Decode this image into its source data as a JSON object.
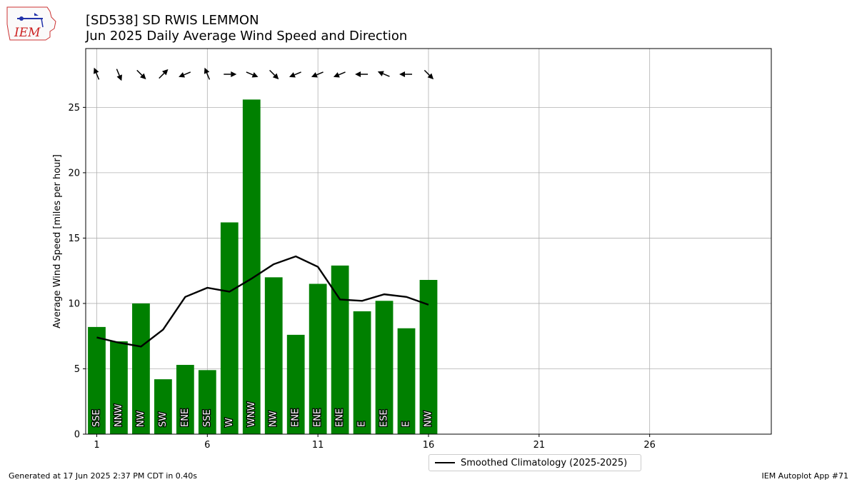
{
  "header": {
    "title_line1": "[SD538] SD RWIS LEMMON",
    "title_line2": "Jun 2025 Daily Average Wind Speed and Direction"
  },
  "logo": {
    "text": "IEM"
  },
  "footer": {
    "left": "Generated at 17 Jun 2025 2:37 PM CDT in 0.40s",
    "right": "IEM Autoplot App #71"
  },
  "chart_data": {
    "type": "bar",
    "ylabel": "Average Wind Speed [miles per hour]",
    "xlabel": "",
    "xlim": [
      0.5,
      31.5
    ],
    "ylim": [
      0,
      29.5
    ],
    "xticks": [
      1,
      6,
      11,
      16,
      21,
      26
    ],
    "yticks": [
      0,
      5,
      10,
      15,
      20,
      25
    ],
    "grid": true,
    "bar_color": "#008000",
    "line_color": "#000000",
    "legend_position": "bottom-center",
    "days": [
      1,
      2,
      3,
      4,
      5,
      6,
      7,
      8,
      9,
      10,
      11,
      12,
      13,
      14,
      15,
      16
    ],
    "speed": [
      8.2,
      7.1,
      10.0,
      4.2,
      5.3,
      4.9,
      16.2,
      25.6,
      12.0,
      7.6,
      11.5,
      12.9,
      9.4,
      10.2,
      8.1,
      11.8
    ],
    "direction_labels": [
      "SSE",
      "NNW",
      "NW",
      "SW",
      "ENE",
      "SSE",
      "W",
      "WNW",
      "NW",
      "ENE",
      "ENE",
      "ENE",
      "E",
      "ESE",
      "E",
      "NW"
    ],
    "direction_degrees": [
      157.5,
      337.5,
      315,
      225,
      67.5,
      157.5,
      270,
      292.5,
      315,
      67.5,
      67.5,
      67.5,
      90,
      112.5,
      90,
      315
    ],
    "climatology": {
      "name": "Smoothed Climatology (2025-2025)",
      "days": [
        1,
        2,
        3,
        4,
        5,
        6,
        7,
        8,
        9,
        10,
        11,
        12,
        13,
        14,
        15,
        16
      ],
      "values": [
        7.4,
        7.0,
        6.7,
        8.0,
        10.5,
        11.2,
        10.9,
        11.9,
        13.0,
        13.6,
        12.8,
        10.3,
        10.2,
        10.7,
        10.5,
        9.9
      ]
    }
  }
}
